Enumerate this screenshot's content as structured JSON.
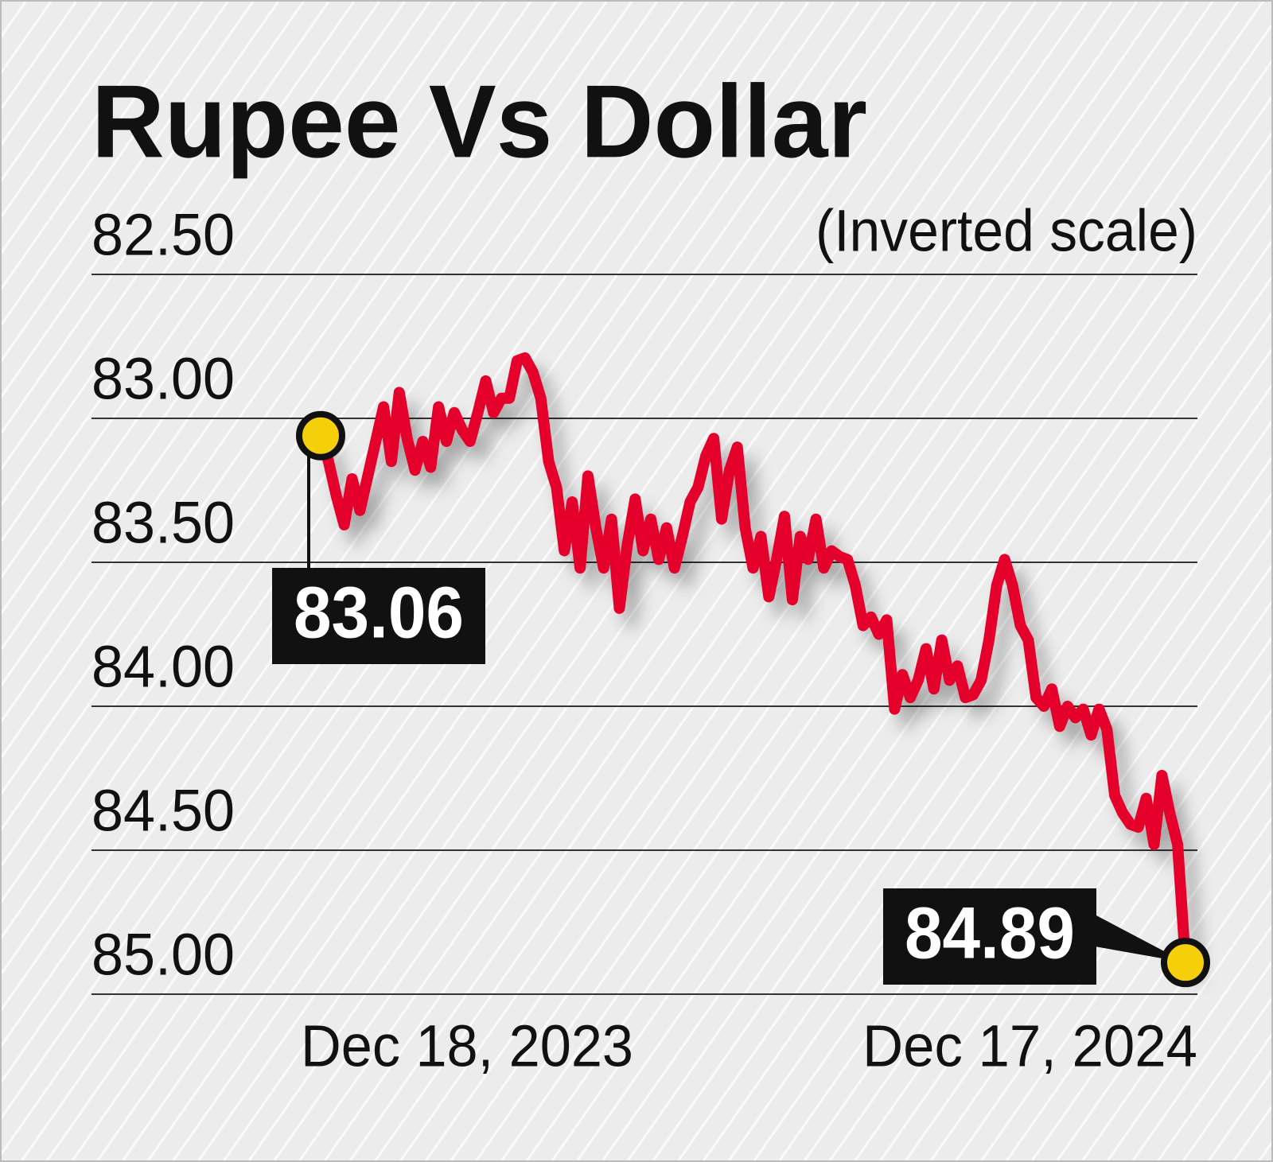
{
  "chart_data": {
    "type": "line",
    "title": "Rupee Vs Dollar",
    "subtitle": "(Inverted scale)",
    "categories": [
      "Dec 18, 2023",
      null,
      null,
      null,
      null,
      null,
      null,
      null,
      null,
      null,
      null,
      null,
      null,
      null,
      null,
      null,
      null,
      null,
      null,
      null,
      null,
      null,
      null,
      null,
      null,
      null,
      null,
      null,
      null,
      null,
      null,
      null,
      null,
      null,
      null,
      null,
      null,
      null,
      null,
      null,
      null,
      null,
      null,
      null,
      null,
      null,
      null,
      null,
      null,
      null,
      null,
      null,
      null,
      null,
      null,
      null,
      null,
      null,
      null,
      null,
      null,
      null,
      null,
      null,
      null,
      null,
      null,
      null,
      null,
      null,
      null,
      null,
      null,
      null,
      null,
      null,
      null,
      null,
      null,
      null,
      null,
      null,
      null,
      null,
      null,
      null,
      null,
      null,
      null,
      null,
      null,
      null,
      null,
      null,
      null,
      null,
      null,
      null,
      null,
      null,
      null,
      null,
      null,
      null,
      null,
      null,
      null,
      null,
      null,
      null,
      "Dec 17, 2024"
    ],
    "values": [
      83.06,
      83.15,
      83.27,
      83.37,
      83.21,
      83.32,
      83.2,
      83.08,
      82.96,
      83.15,
      82.91,
      83.07,
      83.18,
      83.08,
      83.17,
      82.96,
      83.08,
      82.98,
      83.04,
      83.08,
      82.98,
      82.87,
      82.98,
      82.93,
      82.93,
      82.8,
      82.79,
      82.84,
      82.93,
      83.15,
      83.24,
      83.46,
      83.29,
      83.52,
      83.2,
      83.38,
      83.52,
      83.35,
      83.66,
      83.44,
      83.28,
      83.46,
      83.35,
      83.49,
      83.38,
      83.52,
      83.41,
      83.29,
      83.24,
      83.13,
      83.07,
      83.35,
      83.18,
      83.1,
      83.38,
      83.52,
      83.41,
      83.62,
      83.49,
      83.34,
      83.63,
      83.41,
      83.49,
      83.35,
      83.52,
      83.46,
      83.48,
      83.49,
      83.58,
      83.72,
      83.69,
      83.75,
      83.7,
      84.01,
      83.89,
      83.97,
      83.91,
      83.8,
      83.94,
      83.77,
      83.91,
      83.86,
      83.97,
      83.96,
      83.91,
      83.77,
      83.58,
      83.49,
      83.58,
      83.72,
      83.77,
      83.97,
      84.0,
      83.94,
      84.07,
      84.0,
      84.04,
      84.01,
      84.1,
      84.01,
      84.08,
      84.31,
      84.37,
      84.41,
      84.42,
      84.32,
      84.48,
      84.24,
      84.37,
      84.48,
      84.89
    ],
    "color": "#e4002b",
    "marker_color": "#f5cf0a",
    "ylim": [
      85,
      82.5
    ],
    "yticks": [
      {
        "value": 82.5,
        "label": "82.50"
      },
      {
        "value": 83,
        "label": "83.00"
      },
      {
        "value": 83.5,
        "label": "83.50"
      },
      {
        "value": 84,
        "label": "84.00"
      },
      {
        "value": 84.5,
        "label": "84.50"
      },
      {
        "value": 85,
        "label": "85.00"
      }
    ],
    "grid": true
  }
}
